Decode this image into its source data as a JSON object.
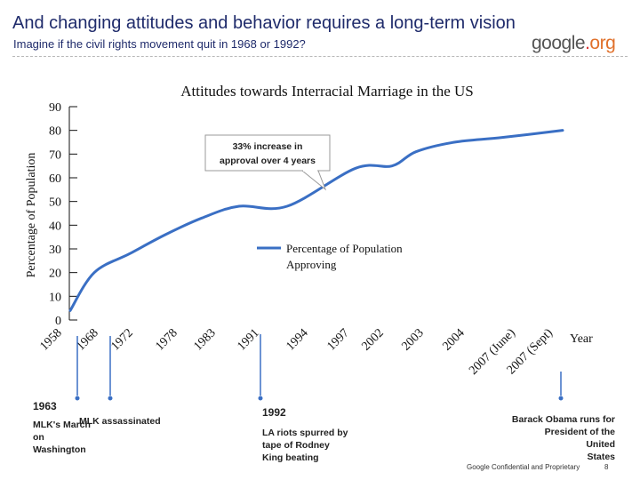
{
  "slide": {
    "title": "And changing attitudes and behavior requires a long-term vision",
    "subtitle": "Imagine if the civil rights movement quit in 1968 or 1992?",
    "logo": {
      "part1": "google",
      "dot": ".",
      "part2": "org"
    },
    "footer": "Google Confidential and Proprietary",
    "page_number": "8"
  },
  "colors": {
    "title": "#1f2b6b",
    "line": "#3a6fc4",
    "annotation_arrow": "#3a6fc4"
  },
  "chart_data": {
    "type": "line",
    "title": "Attitudes towards Interracial Marriage in the US",
    "ylabel": "Percentage of Population",
    "xlabel": "Year",
    "ylim": [
      0,
      90
    ],
    "yticks": [
      "0",
      "10",
      "20",
      "30",
      "40",
      "50",
      "60",
      "70",
      "80",
      "90"
    ],
    "categories": [
      "1958",
      "1968",
      "1972",
      "1978",
      "1983",
      "1991",
      "1994",
      "1997",
      "2002",
      "2003",
      "2004",
      "2007 (June)",
      "2007 (Sept)"
    ],
    "series": [
      {
        "name": "Percentage of Population Approving",
        "values": [
          4,
          20,
          28,
          36,
          43,
          48,
          48,
          64,
          65,
          71,
          75,
          77,
          80
        ]
      }
    ],
    "annotations": [
      {
        "text": "33% increase in approval over 4 years"
      }
    ],
    "legend": "center-right",
    "grid": false
  },
  "timeline": [
    {
      "year": "1963",
      "label": "MLK's March on Washington"
    },
    {
      "label": "MLK assassinated"
    },
    {
      "year": "1992",
      "label": "LA riots spurred by tape of Rodney King beating"
    },
    {
      "label": "Barack Obama runs for President of the United States"
    }
  ]
}
